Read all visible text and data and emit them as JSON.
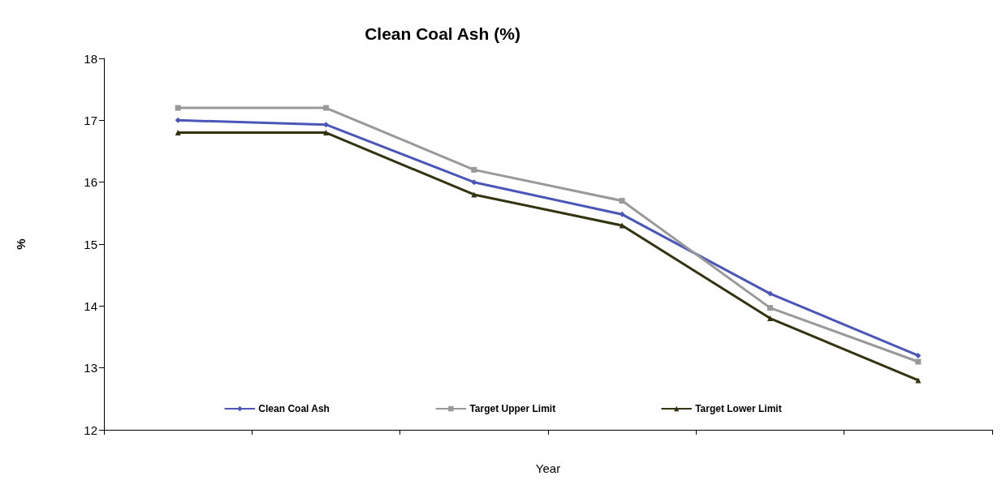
{
  "chart_data": {
    "type": "line",
    "title": "Clean Coal Ash (%)",
    "xlabel": "Year",
    "ylabel": "%",
    "categories": [
      null,
      null,
      null,
      null,
      null,
      null
    ],
    "series": [
      {
        "name": "Clean Coal Ash",
        "color": "#4a56b8",
        "marker": "diamond",
        "values": [
          17.0,
          16.93,
          16.0,
          15.48,
          14.2,
          13.2
        ]
      },
      {
        "name": "Target Upper Limit",
        "color": "#999999",
        "marker": "square",
        "values": [
          17.2,
          17.2,
          16.2,
          15.7,
          13.97,
          13.1
        ]
      },
      {
        "name": "Target Lower Limit",
        "color": "#333310",
        "marker": "triangle",
        "values": [
          16.8,
          16.8,
          15.8,
          15.3,
          13.8,
          12.8
        ]
      }
    ],
    "ylim": [
      12,
      18
    ],
    "yticks": [
      12,
      13,
      14,
      15,
      16,
      17,
      18
    ],
    "grid": false,
    "legend": "bottom",
    "line_style": "solid"
  }
}
